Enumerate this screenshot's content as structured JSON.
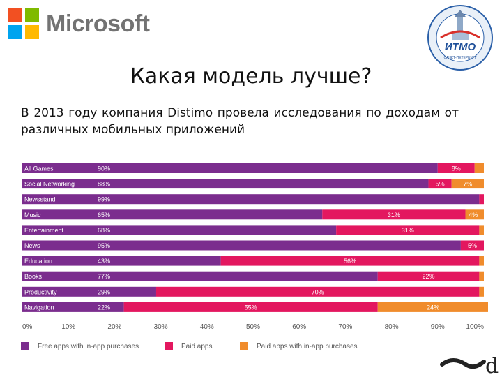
{
  "header": {
    "brand_name": "Microsoft",
    "brand_colors": [
      "#f25022",
      "#7fba00",
      "#00a4ef",
      "#ffb900"
    ],
    "seal_text": "ИТМО",
    "seal_subtitle": "САНКТ-ПЕТЕРБУРГ"
  },
  "slide": {
    "title": "Какая модель лучше?",
    "description": "В 2013 году компания Distimo провела исследования по доходам от различных мобильных приложений"
  },
  "colors": {
    "free": "#7b2d8e",
    "paid": "#e3175f",
    "inapp": "#f08c2c",
    "label_text": "#ffffff"
  },
  "chart_data": {
    "type": "bar",
    "orientation": "horizontal",
    "stacked": true,
    "categories": [
      "All Games",
      "Social Networking",
      "Newsstand",
      "Music",
      "Entertainment",
      "News",
      "Education",
      "Books",
      "Productivity",
      "Navigation"
    ],
    "series": [
      {
        "name": "Free apps with in-app purchases",
        "key": "free",
        "values": [
          90,
          88,
          99,
          65,
          68,
          95,
          43,
          77,
          29,
          22
        ],
        "labels": [
          "90%",
          "88%",
          "99%",
          "65%",
          "68%",
          "95%",
          "43%",
          "77%",
          "29%",
          "22%"
        ]
      },
      {
        "name": "Paid apps",
        "key": "paid",
        "values": [
          8,
          5,
          1,
          31,
          31,
          5,
          56,
          22,
          70,
          55
        ],
        "labels": [
          "8%",
          "5%",
          "",
          "31%",
          "31%",
          "5%",
          "56%",
          "22%",
          "70%",
          "55%"
        ]
      },
      {
        "name": "Paid apps with in-app purchases",
        "key": "inapp",
        "values": [
          2,
          7,
          0,
          4,
          1,
          0,
          1,
          1,
          1,
          24
        ],
        "labels": [
          "",
          "7%",
          "",
          "4%",
          "",
          "",
          "",
          "",
          "",
          "24%"
        ]
      }
    ],
    "xlim": [
      0,
      100
    ],
    "xticks": [
      "0%",
      "10%",
      "20%",
      "30%",
      "40%",
      "50%",
      "60%",
      "70%",
      "80%",
      "90%",
      "100%"
    ],
    "legend_position": "bottom"
  }
}
